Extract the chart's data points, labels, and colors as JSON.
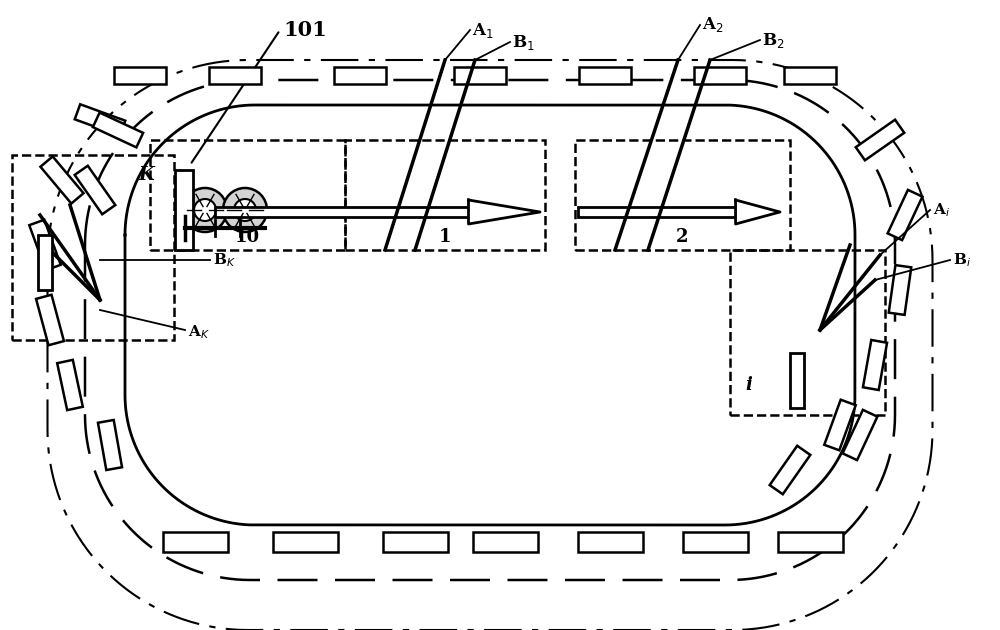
{
  "bg_color": "#ffffff",
  "label_101": "101",
  "label_A1": "A$_1$",
  "label_A2": "A$_2$",
  "label_B1": "B$_1$",
  "label_B2": "B$_2$",
  "label_Ai": "A$_i$",
  "label_Bi": "B$_i$",
  "label_AK": "A$_K$",
  "label_BK": "B$_K$",
  "label_K": "K",
  "label_i": "i",
  "label_10": "10",
  "label_1": "1",
  "label_2": "2",
  "figsize": [
    10.0,
    6.3
  ],
  "dpi": 100,
  "track_inner_lw": 2.0,
  "track_mid_lw": 1.8,
  "track_outer_lw": 1.5
}
